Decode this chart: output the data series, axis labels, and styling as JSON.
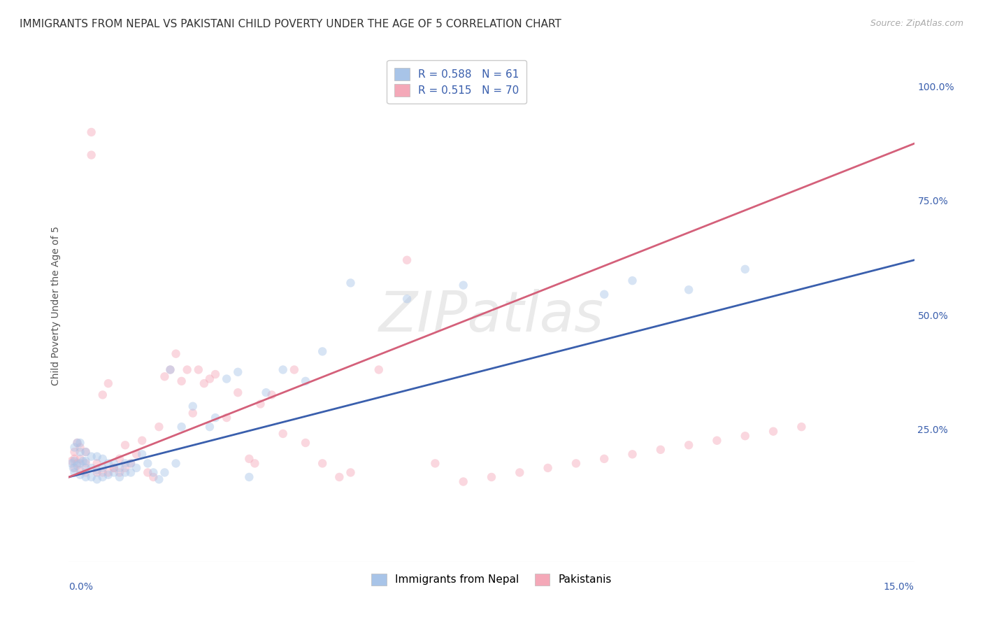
{
  "title": "IMMIGRANTS FROM NEPAL VS PAKISTANI CHILD POVERTY UNDER THE AGE OF 5 CORRELATION CHART",
  "source": "Source: ZipAtlas.com",
  "ylabel": "Child Poverty Under the Age of 5",
  "x_label_bottom_left": "0.0%",
  "x_label_bottom_right": "15.0%",
  "y_ticks": [
    0.0,
    0.25,
    0.5,
    0.75,
    1.0
  ],
  "y_tick_labels": [
    "",
    "25.0%",
    "50.0%",
    "75.0%",
    "100.0%"
  ],
  "xlim": [
    0.0,
    0.15
  ],
  "ylim": [
    -0.04,
    1.08
  ],
  "nepal_R": 0.588,
  "nepal_N": 61,
  "pakistan_R": 0.515,
  "pakistan_N": 70,
  "nepal_color": "#a8c4e8",
  "pakistan_color": "#f4a8b8",
  "nepal_line_color": "#3a5fad",
  "pakistan_line_color": "#d4607a",
  "legend_label_nepal": "Immigrants from Nepal",
  "legend_label_pakistan": "Pakistanis",
  "nepal_line_y0": 0.145,
  "nepal_line_y1": 0.62,
  "pakistan_line_y0": 0.145,
  "pakistan_line_y1": 0.875,
  "nepal_x": [
    0.0005,
    0.0008,
    0.001,
    0.001,
    0.001,
    0.0015,
    0.0015,
    0.002,
    0.002,
    0.002,
    0.002,
    0.0025,
    0.003,
    0.003,
    0.003,
    0.003,
    0.004,
    0.004,
    0.004,
    0.005,
    0.005,
    0.005,
    0.006,
    0.006,
    0.006,
    0.007,
    0.007,
    0.008,
    0.008,
    0.009,
    0.009,
    0.01,
    0.01,
    0.011,
    0.011,
    0.012,
    0.013,
    0.014,
    0.015,
    0.016,
    0.017,
    0.018,
    0.019,
    0.02,
    0.022,
    0.025,
    0.026,
    0.028,
    0.03,
    0.032,
    0.035,
    0.038,
    0.042,
    0.045,
    0.05,
    0.06,
    0.07,
    0.095,
    0.1,
    0.11,
    0.12
  ],
  "nepal_y": [
    0.175,
    0.165,
    0.155,
    0.18,
    0.21,
    0.17,
    0.22,
    0.15,
    0.175,
    0.2,
    0.22,
    0.18,
    0.145,
    0.165,
    0.18,
    0.2,
    0.145,
    0.165,
    0.19,
    0.14,
    0.16,
    0.19,
    0.145,
    0.165,
    0.185,
    0.15,
    0.175,
    0.155,
    0.175,
    0.145,
    0.165,
    0.155,
    0.175,
    0.155,
    0.175,
    0.165,
    0.195,
    0.175,
    0.155,
    0.14,
    0.155,
    0.38,
    0.175,
    0.255,
    0.3,
    0.255,
    0.275,
    0.36,
    0.375,
    0.145,
    0.33,
    0.38,
    0.355,
    0.42,
    0.57,
    0.535,
    0.565,
    0.545,
    0.575,
    0.555,
    0.6
  ],
  "pakistan_x": [
    0.0005,
    0.001,
    0.001,
    0.001,
    0.0015,
    0.0015,
    0.002,
    0.002,
    0.002,
    0.003,
    0.003,
    0.003,
    0.004,
    0.004,
    0.005,
    0.005,
    0.006,
    0.006,
    0.007,
    0.007,
    0.008,
    0.008,
    0.009,
    0.009,
    0.01,
    0.01,
    0.011,
    0.012,
    0.013,
    0.014,
    0.015,
    0.016,
    0.017,
    0.018,
    0.019,
    0.02,
    0.021,
    0.022,
    0.023,
    0.024,
    0.025,
    0.026,
    0.028,
    0.03,
    0.032,
    0.033,
    0.034,
    0.036,
    0.038,
    0.04,
    0.042,
    0.045,
    0.048,
    0.05,
    0.055,
    0.06,
    0.065,
    0.07,
    0.075,
    0.08,
    0.085,
    0.09,
    0.095,
    0.1,
    0.105,
    0.11,
    0.115,
    0.12,
    0.125,
    0.13
  ],
  "pakistan_y": [
    0.18,
    0.165,
    0.185,
    0.2,
    0.175,
    0.22,
    0.16,
    0.185,
    0.21,
    0.155,
    0.175,
    0.2,
    0.85,
    0.9,
    0.155,
    0.175,
    0.155,
    0.325,
    0.155,
    0.35,
    0.165,
    0.165,
    0.155,
    0.185,
    0.165,
    0.215,
    0.175,
    0.195,
    0.225,
    0.155,
    0.145,
    0.255,
    0.365,
    0.38,
    0.415,
    0.355,
    0.38,
    0.285,
    0.38,
    0.35,
    0.36,
    0.37,
    0.275,
    0.33,
    0.185,
    0.175,
    0.305,
    0.325,
    0.24,
    0.38,
    0.22,
    0.175,
    0.145,
    0.155,
    0.38,
    0.62,
    0.175,
    0.135,
    0.145,
    0.155,
    0.165,
    0.175,
    0.185,
    0.195,
    0.205,
    0.215,
    0.225,
    0.235,
    0.245,
    0.255
  ],
  "background_color": "#ffffff",
  "grid_color": "#d0d0d0",
  "title_fontsize": 11,
  "axis_label_fontsize": 10,
  "tick_fontsize": 10,
  "legend_fontsize": 11,
  "marker_size": 80,
  "marker_alpha": 0.45
}
